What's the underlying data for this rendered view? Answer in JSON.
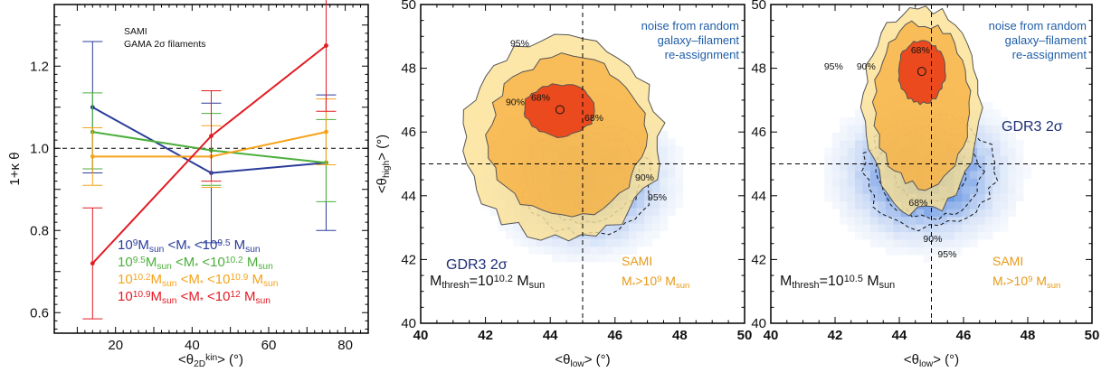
{
  "chart_data": [
    {
      "type": "line",
      "ylabel": "1+κ θ",
      "xlabel_main": "<θ",
      "xlabel_sub": "2D",
      "xlabel_sup": "kin",
      "xlabel_end": "> (°)",
      "xlim": [
        4,
        86
      ],
      "ylim": [
        0.55,
        1.35
      ],
      "xticks": [
        "20",
        "40",
        "60",
        "80"
      ],
      "yticks": [
        "0.6",
        "0.8",
        "1.0",
        "1.2"
      ],
      "reference_line_y": 1.0,
      "annotation_lines": [
        "SAMI",
        "GAMA 2σ filaments"
      ],
      "x": [
        14,
        45,
        75
      ],
      "series": [
        {
          "color": "#2b3d9a",
          "values": [
            1.1,
            0.94,
            0.965
          ],
          "err_low": [
            0.94,
            0.77,
            0.8
          ],
          "err_high": [
            1.26,
            1.11,
            1.13
          ],
          "label": [
            "10",
            "9",
            "M",
            "sun",
            " <M",
            "*",
            " <10",
            "9.5",
            " M",
            "sun"
          ]
        },
        {
          "color": "#4caf3c",
          "values": [
            1.04,
            0.995,
            0.965
          ],
          "err_low": [
            0.95,
            0.91,
            0.87
          ],
          "err_high": [
            1.135,
            1.085,
            1.07
          ],
          "label": [
            "10",
            "9.5",
            "M",
            "sun",
            " <M",
            "*",
            " <10",
            "10.2",
            " M",
            "sun"
          ]
        },
        {
          "color": "#f5a31b",
          "values": [
            0.98,
            0.98,
            1.04
          ],
          "err_low": [
            0.91,
            0.905,
            0.96
          ],
          "err_high": [
            1.05,
            1.055,
            1.12
          ],
          "label": [
            "10",
            "10.2",
            "M",
            "sun",
            " <M",
            "*",
            " <10",
            "10.9",
            " M",
            "sun"
          ]
        },
        {
          "color": "#e21b23",
          "values": [
            0.72,
            1.03,
            1.25
          ],
          "err_low": [
            0.585,
            0.92,
            1.09
          ],
          "err_high": [
            0.855,
            1.14,
            1.41
          ],
          "label": [
            "10",
            "10.9",
            "M",
            "sun",
            " <M",
            "*",
            " <10",
            "12",
            " M",
            "sun"
          ]
        }
      ]
    },
    {
      "type": "heatmap",
      "xlabel_main": "<θ",
      "xlabel_sub": "low",
      "xlabel_end": "> (°)",
      "ylabel_main": "<θ",
      "ylabel_sub": "high",
      "ylabel_end": "> (°)",
      "xlim": [
        40,
        50
      ],
      "ylim": [
        40,
        50
      ],
      "xticks": [
        "40",
        "42",
        "44",
        "46",
        "48",
        "50"
      ],
      "yticks": [
        "40",
        "42",
        "44",
        "46",
        "48",
        "50"
      ],
      "reference_x": 45,
      "reference_y": 45,
      "noise_text": [
        "noise from random",
        "galaxy–filament",
        "re-assignment"
      ],
      "gdr3_text": "GDR3 2σ",
      "sami_text": "SAMI",
      "sami_mass": [
        "M",
        "*",
        ">10",
        "9",
        " M",
        "sun"
      ],
      "mthresh": [
        "M",
        "thresh",
        "=10",
        "10.2",
        " M",
        "sun"
      ],
      "sami_center": [
        44.3,
        46.7
      ],
      "sami_labels": [
        "95%",
        "90%",
        "68%"
      ],
      "gdr3_labels": [
        "68%",
        "90%",
        "95%"
      ],
      "gdr3_center": [
        45.0,
        44.5
      ]
    },
    {
      "type": "heatmap",
      "xlabel_main": "<θ",
      "xlabel_sub": "low",
      "xlabel_end": "> (°)",
      "xlim": [
        40,
        50
      ],
      "ylim": [
        40,
        50
      ],
      "xticks": [
        "40",
        "42",
        "44",
        "46",
        "48",
        "50"
      ],
      "yticks": [
        "40",
        "42",
        "44",
        "46",
        "48",
        "50"
      ],
      "reference_x": 45,
      "reference_y": 45,
      "noise_text": [
        "noise from random",
        "galaxy–filament",
        "re-assignment"
      ],
      "gdr3_text": "GDR3 2σ",
      "sami_text": "SAMI",
      "sami_mass": [
        "M",
        "*",
        ">10",
        "9",
        " M",
        "sun"
      ],
      "mthresh": [
        "M",
        "thresh",
        "=10",
        "10.5",
        " M",
        "sun"
      ],
      "sami_center": [
        44.7,
        47.9
      ],
      "sami_labels": [
        "95%",
        "90%",
        "68%"
      ],
      "gdr3_labels": [
        "68%",
        "90%",
        "95%"
      ],
      "gdr3_center": [
        44.8,
        44.7
      ]
    }
  ]
}
